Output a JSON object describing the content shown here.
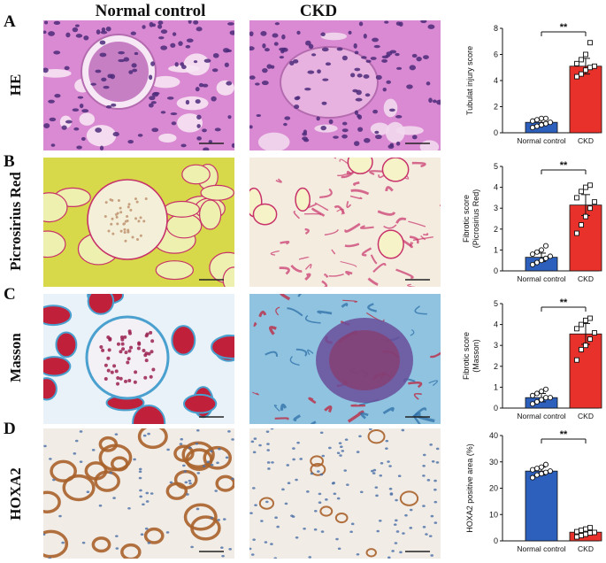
{
  "columns": {
    "normal": "Normal control",
    "ckd": "CKD"
  },
  "rows": [
    {
      "letter": "A",
      "label": "HE"
    },
    {
      "letter": "B",
      "label": "Picrosirius Red"
    },
    {
      "letter": "C",
      "label": "Masson"
    },
    {
      "letter": "D",
      "label": "HOXA2"
    }
  ],
  "colors": {
    "normal_bar": "#2d5fbd",
    "ckd_bar": "#e8312a",
    "he_bg": "#d98ad2",
    "he_nuclei": "#4b2a7a",
    "psr_bg": "#d8d94a",
    "psr_fiber": "#c8326a",
    "masson_red": "#c0203a",
    "masson_blue": "#4aa0cf",
    "ihc_bg": "#f1ece6",
    "ihc_brown": "#a8622a",
    "ihc_blue": "#4a6fa8"
  },
  "chart_data": [
    {
      "type": "bar",
      "categories": [
        "Normal control",
        "CKD"
      ],
      "values": [
        0.8,
        5.1
      ],
      "errors": [
        0.25,
        0.6
      ],
      "points": [
        [
          0.4,
          0.5,
          0.6,
          0.7,
          0.8,
          0.9,
          1.0,
          1.1,
          1.1
        ],
        [
          4.3,
          4.5,
          4.8,
          5.0,
          5.1,
          5.3,
          5.6,
          6.0,
          6.9
        ]
      ],
      "ylabel": "Tubulat injury score",
      "ylim": [
        0,
        8
      ],
      "yticks": [
        0,
        2,
        4,
        6,
        8
      ],
      "significance": "**"
    },
    {
      "type": "bar",
      "categories": [
        "Normal control",
        "CKD"
      ],
      "values": [
        0.65,
        3.15
      ],
      "errors": [
        0.2,
        0.5
      ],
      "points": [
        [
          0.3,
          0.4,
          0.5,
          0.6,
          0.7,
          0.8,
          0.9,
          1.0,
          1.2
        ],
        [
          1.8,
          2.2,
          2.6,
          3.0,
          3.3,
          3.5,
          3.8,
          4.0,
          4.1
        ]
      ],
      "ylabel": "Fibrotic score\n(Picrosirius Red)",
      "ylim": [
        0,
        5
      ],
      "yticks": [
        0,
        1,
        2,
        3,
        4,
        5
      ],
      "significance": "**"
    },
    {
      "type": "bar",
      "categories": [
        "Normal control",
        "CKD"
      ],
      "values": [
        0.5,
        3.55
      ],
      "errors": [
        0.2,
        0.5
      ],
      "points": [
        [
          0.2,
          0.3,
          0.4,
          0.5,
          0.5,
          0.6,
          0.7,
          0.8,
          0.9
        ],
        [
          2.3,
          2.8,
          3.0,
          3.3,
          3.6,
          3.8,
          4.0,
          4.2,
          4.3
        ]
      ],
      "ylabel": "Fibrotic score\n(Masson)",
      "ylim": [
        0,
        5
      ],
      "yticks": [
        0,
        1,
        2,
        3,
        4,
        5
      ],
      "significance": "**"
    },
    {
      "type": "bar",
      "categories": [
        "Normal control",
        "CKD"
      ],
      "values": [
        26.5,
        3.3
      ],
      "errors": [
        1.5,
        1.0
      ],
      "points": [
        [
          24,
          25,
          25.5,
          26,
          26.5,
          27,
          27.5,
          28,
          29
        ],
        [
          1.5,
          2.0,
          2.5,
          3.0,
          3.2,
          3.5,
          4.0,
          4.5,
          5.0
        ]
      ],
      "ylabel": "HOXA2 positive area (%)",
      "ylim": [
        0,
        40
      ],
      "yticks": [
        0,
        10,
        20,
        30,
        40
      ],
      "significance": "**"
    }
  ]
}
